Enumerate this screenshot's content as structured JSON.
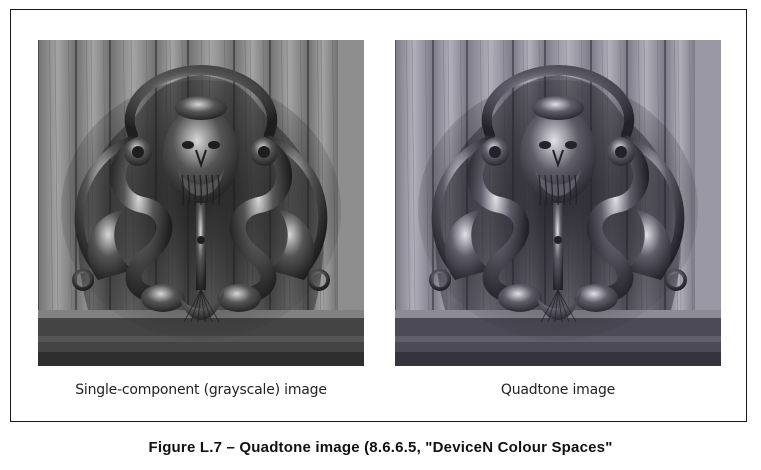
{
  "figure": {
    "images": [
      {
        "caption": "Single-component (grayscale) image",
        "tone": "grayscale",
        "palette": {
          "bg": "#8e8e8e",
          "plank_dark": "#5a5a5a",
          "plank_light": "#b4b4b4",
          "metal_dark": "#1e1e1e",
          "metal_mid": "#555555",
          "metal_light": "#d8d8d8",
          "base": "#444444"
        }
      },
      {
        "caption": "Quadtone image",
        "tone": "quadtone",
        "palette": {
          "bg": "#9a98a4",
          "plank_dark": "#646370",
          "plank_light": "#c3c2cc",
          "metal_dark": "#23222a",
          "metal_mid": "#5e5c68",
          "metal_light": "#e2e1e8",
          "base": "#4c4a56"
        }
      }
    ],
    "title": "Figure L.7 –  Quadtone image (8.6.6.5, \"DeviceN Colour Spaces\""
  }
}
